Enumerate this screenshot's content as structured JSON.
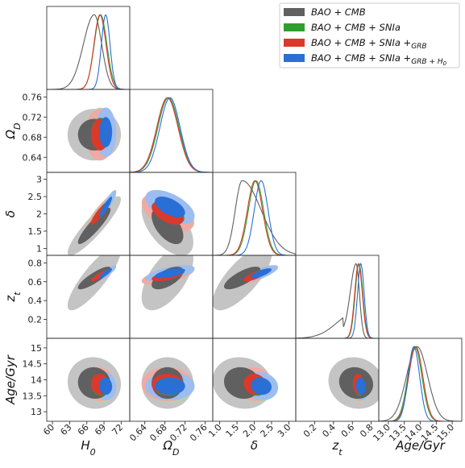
{
  "chart_data": {
    "type": "corner-contour",
    "colors": {
      "BAO": "#606060",
      "SN": "#2e9e2e",
      "GRB": "#d93a2b",
      "H0": "#2a6fd6"
    },
    "legend": {
      "placement": "top-right",
      "entries": [
        {
          "key": "BAO",
          "text": "BAO + CMB",
          "sub": ""
        },
        {
          "key": "SN",
          "text": "BAO + CMB + SNIa",
          "sub": ""
        },
        {
          "key": "GRB",
          "text": "BAO + CMB + SNIa +",
          "sub": "GRB"
        },
        {
          "key": "H0",
          "text": "BAO + CMB + SNIa +",
          "sub": "GRB + H",
          "sub2": "0"
        }
      ]
    },
    "params": [
      {
        "id": "H0",
        "label": "H",
        "sub": "0",
        "range": [
          59,
          73.5
        ],
        "ticks": [
          60,
          63,
          66,
          69,
          72
        ]
      },
      {
        "id": "OmegaD",
        "label": "Ω",
        "sub": "D",
        "range": [
          0.61,
          0.775
        ],
        "ticks": [
          0.64,
          0.68,
          0.72,
          0.76
        ]
      },
      {
        "id": "delta",
        "label": "δ",
        "sub": "",
        "range": [
          0.8,
          3.2
        ],
        "ticks": [
          1.0,
          1.5,
          2.0,
          2.5,
          3.0
        ]
      },
      {
        "id": "zt",
        "label": "z",
        "sub": "t",
        "range": [
          0.0,
          0.88
        ],
        "ticks": [
          0.2,
          0.4,
          0.6,
          0.8
        ]
      },
      {
        "id": "age",
        "label": "Age/Gyr",
        "sub": "",
        "range": [
          12.7,
          15.3
        ],
        "ticks": [
          13.0,
          13.5,
          14.0,
          14.5,
          15.0
        ]
      }
    ],
    "tick_text": {
      "H0": [
        "60",
        "63",
        "66",
        "69",
        "72"
      ],
      "OmegaD": [
        "0.64",
        "0.68",
        "0.72",
        "0.76"
      ],
      "delta": [
        "1.0",
        "1.5",
        "2.0",
        "2.5",
        "3.0"
      ],
      "zt": [
        "0.2",
        "0.4",
        "0.6",
        "0.8"
      ],
      "age": [
        "13.0",
        "13.5",
        "14.0",
        "14.5",
        "15.0"
      ],
      "OmegaD_left": [
        "0.64",
        "0.68",
        "0.72",
        "0.76"
      ],
      "delta_left": [
        "1",
        "1.5",
        "2",
        "2.5",
        "3"
      ],
      "zt_left": [
        "0.2",
        "0.4",
        "0.6",
        "0.8"
      ],
      "age_left": [
        "13",
        "13.5",
        "14",
        "14.5",
        "15"
      ]
    },
    "posteriors": {
      "BAO": {
        "H0": [
          67.3,
          1.9
        ],
        "OmegaD": [
          0.685,
          0.021
        ],
        "delta": [
          1.65,
          0.35
        ],
        "zt": [
          0.64,
          0.12
        ],
        "age": [
          13.9,
          0.33
        ]
      },
      "SN": {
        "H0": [
          68.4,
          1.1
        ],
        "OmegaD": [
          0.687,
          0.021
        ],
        "delta": [
          2.05,
          0.22
        ],
        "zt": [
          0.67,
          0.04
        ],
        "age": [
          13.83,
          0.22
        ]
      },
      "GRB": {
        "H0": [
          68.3,
          1.05
        ],
        "OmegaD": [
          0.685,
          0.021
        ],
        "delta": [
          2.02,
          0.22
        ],
        "zt": [
          0.665,
          0.04
        ],
        "age": [
          13.86,
          0.22
        ]
      },
      "H0": {
        "H0": [
          69.3,
          0.75
        ],
        "OmegaD": [
          0.69,
          0.02
        ],
        "delta": [
          2.2,
          0.2
        ],
        "zt": [
          0.69,
          0.035
        ],
        "age": [
          13.8,
          0.18
        ]
      }
    }
  }
}
